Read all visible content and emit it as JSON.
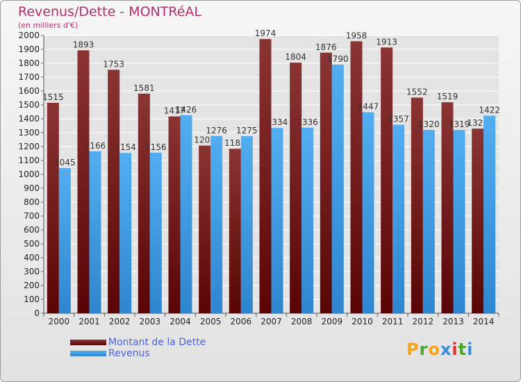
{
  "chart_data": {
    "type": "bar",
    "title": "Revenus/Dette - MONTRéAL",
    "subtitle": "(en milliers d'€)",
    "categories": [
      "2000",
      "2001",
      "2002",
      "2003",
      "2004",
      "2005",
      "2006",
      "2007",
      "2008",
      "2009",
      "2010",
      "2011",
      "2012",
      "2013",
      "2014"
    ],
    "series": [
      {
        "name": "Montant de la Dette",
        "color": "#7a1c1c",
        "values": [
          1515,
          1893,
          1753,
          1581,
          1417,
          1207,
          1184,
          1974,
          1804,
          1876,
          1958,
          1913,
          1552,
          1519,
          1329
        ]
      },
      {
        "name": "Revenus",
        "color": "#3f9fe3",
        "values": [
          1045,
          1166,
          1154,
          1156,
          1426,
          1276,
          1275,
          1334,
          1336,
          1790,
          1447,
          1357,
          1320,
          1319,
          1422
        ]
      }
    ],
    "ylim": [
      0,
      2000
    ],
    "ytick_step": 100,
    "grid": true,
    "legend": "bottom-left"
  },
  "brand": {
    "letters": [
      "P",
      "r",
      "o",
      "x",
      "i",
      "t",
      "i"
    ],
    "colors": [
      "#f7a21b",
      "#49a52d",
      "#f7a21b",
      "#3b8ad9",
      "#e0312e",
      "#49a52d",
      "#3b8ad9"
    ]
  }
}
